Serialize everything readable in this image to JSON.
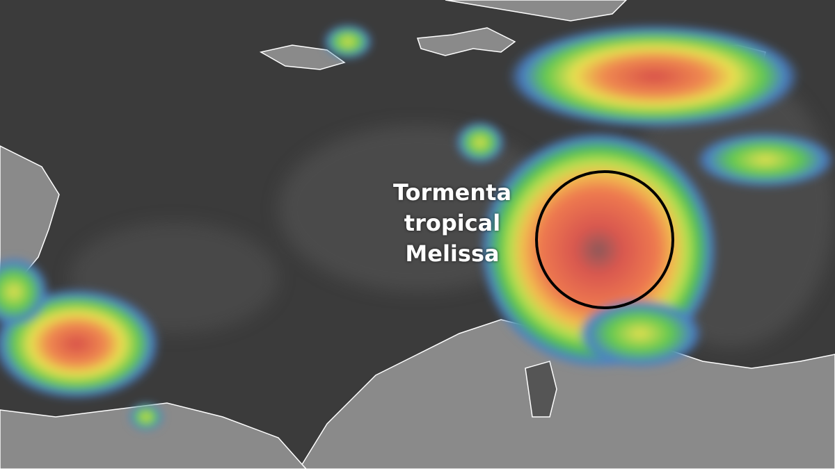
{
  "annotation": {
    "lines": [
      "Tormenta",
      "tropical",
      "Melissa"
    ]
  },
  "colors": {
    "ocean": "#3b3b3b",
    "land": "#8c8c8c",
    "coastline": "#ffffff",
    "storm_core": "#e0504a",
    "storm_ring": "#8fe04a",
    "storm_outer": "#4a7fd0",
    "circle_outline": "#000000"
  }
}
